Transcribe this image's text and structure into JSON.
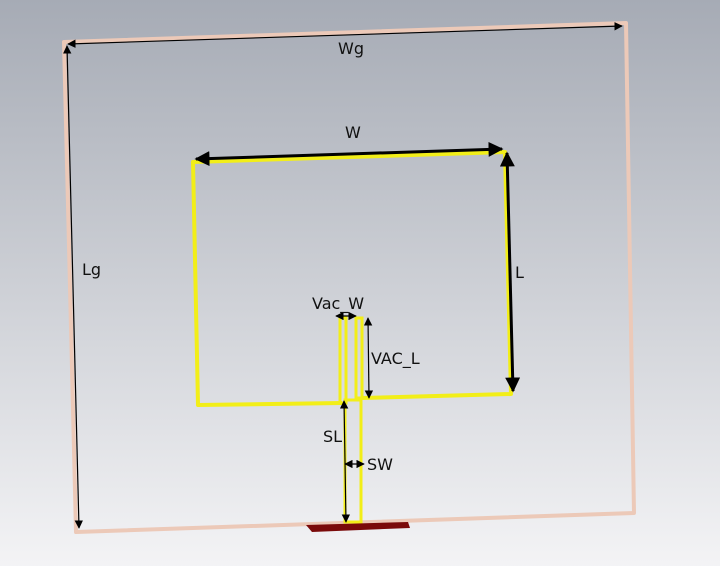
{
  "colors": {
    "background_top": "#a6abb5",
    "background_bottom": "#f4f4f6",
    "ground_outline": "#ecc9b8",
    "patch_outline": "#f2ee18",
    "port": "#7a0a0a",
    "arrow": "#000000"
  },
  "labels": {
    "wg": "Wg",
    "lg": "Lg",
    "w": "W",
    "l": "L",
    "vac_w": "Vac_W",
    "vac_l": "VAC_L",
    "sl": "SL",
    "sw": "SW"
  }
}
